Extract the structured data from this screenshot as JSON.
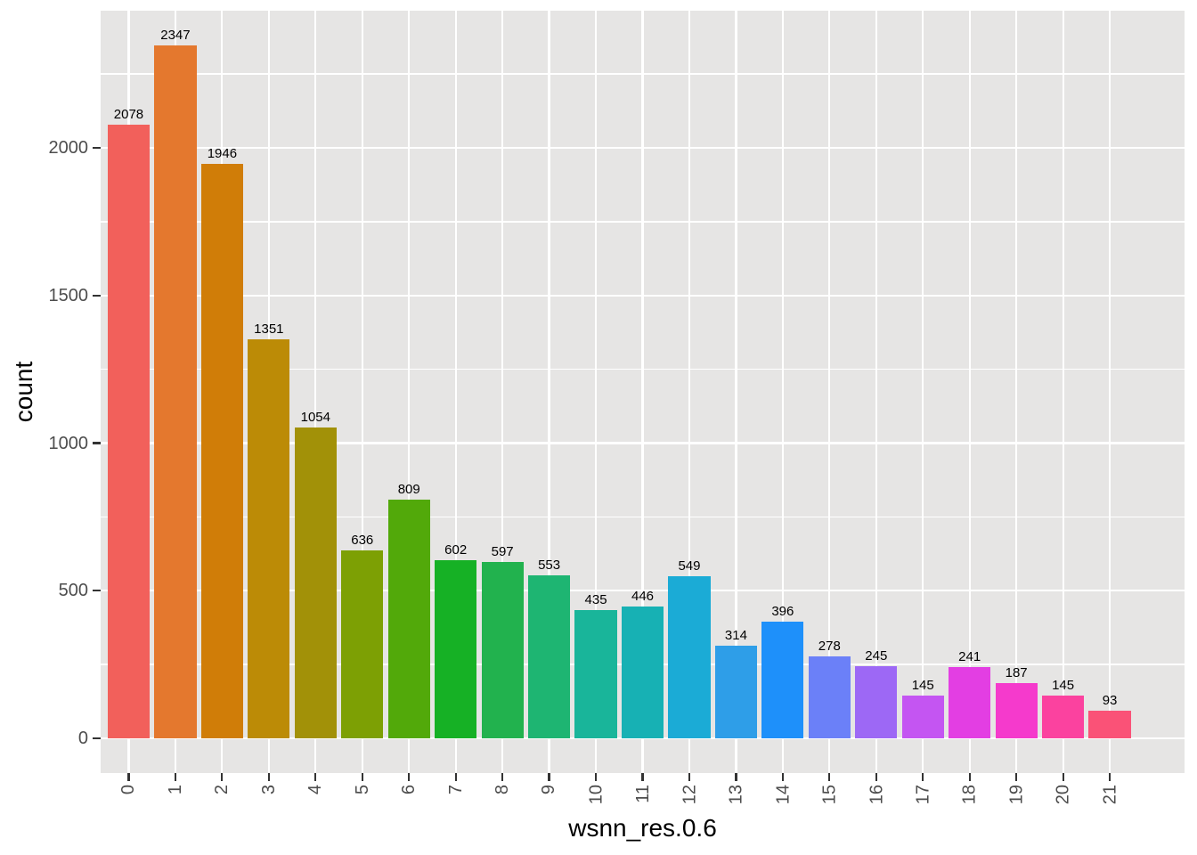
{
  "chart_data": {
    "type": "bar",
    "title": "",
    "xlabel": "wsnn_res.0.6",
    "ylabel": "count",
    "categories": [
      "0",
      "1",
      "2",
      "3",
      "4",
      "5",
      "6",
      "7",
      "8",
      "9",
      "10",
      "11",
      "12",
      "13",
      "14",
      "15",
      "16",
      "17",
      "18",
      "19",
      "20",
      "21"
    ],
    "values": [
      2078,
      2347,
      1946,
      1351,
      1054,
      636,
      809,
      602,
      597,
      553,
      435,
      446,
      549,
      314,
      396,
      278,
      245,
      145,
      241,
      187,
      145,
      93
    ],
    "bar_value_labels": [
      "2078",
      "2347",
      "1946",
      "1351",
      "1054",
      "636",
      "809",
      "602",
      "597",
      "553",
      "435",
      "446",
      "549",
      "314",
      "396",
      "278",
      "245",
      "145",
      "241",
      "187",
      "145",
      "93"
    ],
    "bar_colors": [
      "#F2605B",
      "#E4782E",
      "#D07D08",
      "#BC8B06",
      "#A29108",
      "#7DA004",
      "#52A90A",
      "#16B125",
      "#22B24E",
      "#1EB572",
      "#19B59A",
      "#17B1B4",
      "#1BABD6",
      "#2E9EE8",
      "#1E90FA",
      "#6B80F8",
      "#9D68F5",
      "#C455F2",
      "#E33EE3",
      "#F53ACC",
      "#FB429F",
      "#FA5277"
    ],
    "y_major_ticks": [
      0,
      500,
      1000,
      1500,
      2000
    ],
    "y_minor_ticks": [
      250,
      750,
      1250,
      1750,
      2250
    ],
    "ylim": [
      -117.35,
      2464.35
    ],
    "grid": "on",
    "legend_position": "none",
    "panel_background": "#E6E5E4",
    "grid_color": "#FFFFFF",
    "tick_mark_color": "#333333",
    "tick_label_color": "#4D4D4D",
    "axis_title_color": "#000000",
    "bar_label_color": "#000000"
  }
}
